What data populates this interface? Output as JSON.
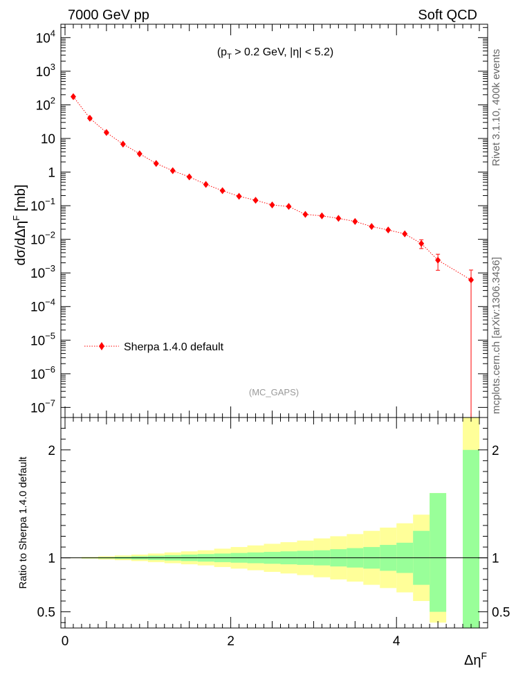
{
  "header": {
    "left": "7000 GeV pp",
    "right": "Soft QCD"
  },
  "side_labels": {
    "rivet": "Rivet 3.1.10,  400k events",
    "mcplots": "mcplots.cern.ch [arXiv:1306.3436]"
  },
  "colors": {
    "series": "#ff0000",
    "band_inner": "#99ff99",
    "band_outer": "#ffff99",
    "watermark": "#999999"
  },
  "chart_data": [
    {
      "type": "scatter",
      "annotation": "(p_T > 0.2 GeV, |η| < 5.2)",
      "watermark": "(MC_GAPS)",
      "ylabel": "dσ/dΔη^F [mb]",
      "yscale": "log",
      "xlim": [
        -0.05,
        5.1
      ],
      "ylim": [
        5e-08,
        25000
      ],
      "legend": {
        "placement": "bottom-left"
      },
      "x_ticks": [
        "0",
        "2",
        "4"
      ],
      "y_ticks": [
        {
          "value": 1e-07,
          "base": "10",
          "exp": "−7"
        },
        {
          "value": 1e-06,
          "base": "10",
          "exp": "−6"
        },
        {
          "value": 1e-05,
          "base": "10",
          "exp": "−5"
        },
        {
          "value": 0.0001,
          "base": "10",
          "exp": "−4"
        },
        {
          "value": 0.001,
          "base": "10",
          "exp": "−3"
        },
        {
          "value": 0.01,
          "base": "10",
          "exp": "−2"
        },
        {
          "value": 0.1,
          "base": "10",
          "exp": "−1"
        },
        {
          "value": 1,
          "base": "1",
          "exp": ""
        },
        {
          "value": 10,
          "base": "10",
          "exp": ""
        },
        {
          "value": 100,
          "base": "10",
          "exp": "2"
        },
        {
          "value": 1000,
          "base": "10",
          "exp": "3"
        },
        {
          "value": 10000,
          "base": "10",
          "exp": "4"
        }
      ],
      "series": [
        {
          "name": "Sherpa 1.4.0 default",
          "x": [
            0.1,
            0.3,
            0.5,
            0.7,
            0.9,
            1.1,
            1.3,
            1.5,
            1.7,
            1.9,
            2.1,
            2.3,
            2.5,
            2.7,
            2.9,
            3.1,
            3.3,
            3.5,
            3.7,
            3.9,
            4.1,
            4.3,
            4.5,
            4.9
          ],
          "y": [
            175,
            40,
            15,
            6.8,
            3.5,
            1.8,
            1.1,
            0.72,
            0.43,
            0.28,
            0.19,
            0.145,
            0.105,
            0.095,
            0.055,
            0.05,
            0.042,
            0.034,
            0.024,
            0.019,
            0.0145,
            0.0075,
            0.0024,
            0.00062
          ],
          "yerr_up": [
            10,
            2,
            0.8,
            0.4,
            0.2,
            0.1,
            0.07,
            0.05,
            0.03,
            0.02,
            0.015,
            0.012,
            0.01,
            0.009,
            0.006,
            0.006,
            0.005,
            0.004,
            0.003,
            0.003,
            0.0025,
            0.0022,
            0.0012,
            0.0006
          ],
          "yerr_down": [
            10,
            2,
            0.8,
            0.4,
            0.2,
            0.1,
            0.07,
            0.05,
            0.03,
            0.02,
            0.015,
            0.012,
            0.01,
            0.009,
            0.006,
            0.006,
            0.005,
            0.004,
            0.003,
            0.003,
            0.0025,
            0.0022,
            0.0012,
            0.00062
          ]
        }
      ]
    },
    {
      "type": "area",
      "ylabel": "Ratio to Sherpa 1.4.0 default",
      "xlabel": "Δη^F",
      "xlim": [
        -0.05,
        5.1
      ],
      "ylim": [
        0.35,
        2.3
      ],
      "y_ticks": [
        "0.5",
        "1",
        "2"
      ],
      "reference_line": 1,
      "bins": {
        "edges": [
          0.0,
          0.2,
          0.4,
          0.6,
          0.8,
          1.0,
          1.2,
          1.4,
          1.6,
          1.8,
          2.0,
          2.2,
          2.4,
          2.6,
          2.8,
          3.0,
          3.2,
          3.4,
          3.6,
          3.8,
          4.0,
          4.2,
          4.4,
          4.6
        ],
        "inner_low": [
          0.998,
          0.996,
          0.994,
          0.99,
          0.985,
          0.98,
          0.975,
          0.97,
          0.965,
          0.96,
          0.955,
          0.95,
          0.945,
          0.94,
          0.935,
          0.93,
          0.92,
          0.91,
          0.9,
          0.88,
          0.86,
          0.75,
          0.5
        ],
        "inner_high": [
          1.002,
          1.004,
          1.006,
          1.01,
          1.015,
          1.02,
          1.025,
          1.03,
          1.035,
          1.04,
          1.045,
          1.05,
          1.055,
          1.06,
          1.065,
          1.07,
          1.08,
          1.09,
          1.1,
          1.12,
          1.14,
          1.25,
          1.6
        ],
        "outer_low": [
          0.997,
          0.992,
          0.985,
          0.978,
          0.97,
          0.96,
          0.95,
          0.94,
          0.93,
          0.915,
          0.9,
          0.885,
          0.87,
          0.855,
          0.84,
          0.82,
          0.8,
          0.78,
          0.75,
          0.72,
          0.68,
          0.6,
          0.4
        ],
        "outer_high": [
          1.003,
          1.008,
          1.015,
          1.022,
          1.03,
          1.04,
          1.05,
          1.06,
          1.07,
          1.085,
          1.1,
          1.115,
          1.13,
          1.145,
          1.16,
          1.18,
          1.2,
          1.22,
          1.25,
          1.28,
          1.32,
          1.4,
          1.6
        ],
        "extra": [
          {
            "x0": 4.8,
            "x1": 5.0,
            "inner_low": 0.35,
            "inner_high": 2.0,
            "outer_low": 0.35,
            "outer_high": 2.3
          }
        ]
      }
    }
  ]
}
